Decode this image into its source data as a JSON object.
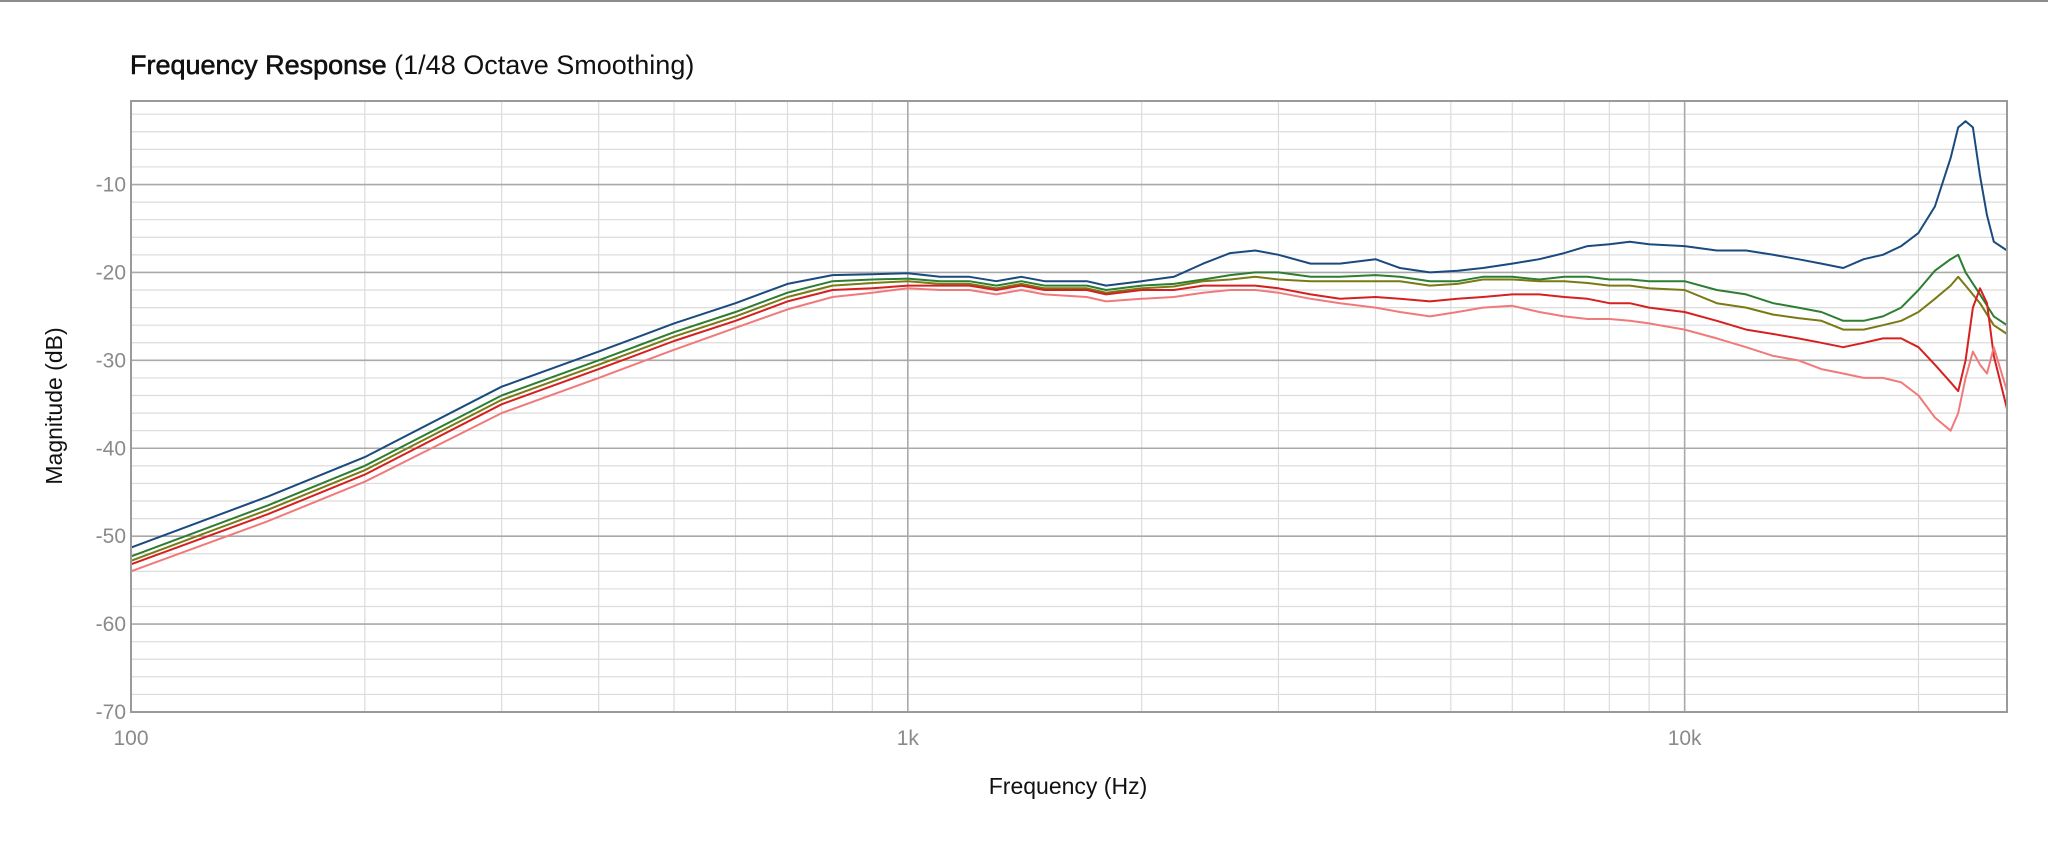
{
  "chart_data": {
    "type": "line",
    "title": "Frequency Response",
    "subtitle": "(1/48 Octave Smoothing)",
    "xlabel": "Frequency (Hz)",
    "ylabel": "Magnitude (dB)",
    "x_scale": "log",
    "xlim": [
      100,
      26000
    ],
    "ylim": [
      -70,
      -0.5
    ],
    "x_ticks": [
      {
        "value": 100,
        "label": "100"
      },
      {
        "value": 1000,
        "label": "1k"
      },
      {
        "value": 10000,
        "label": "10k"
      }
    ],
    "y_ticks": [
      {
        "value": -10,
        "label": "-10"
      },
      {
        "value": -20,
        "label": "-20"
      },
      {
        "value": -30,
        "label": "-30"
      },
      {
        "value": -40,
        "label": "-40"
      },
      {
        "value": -50,
        "label": "-50"
      },
      {
        "value": -60,
        "label": "-60"
      },
      {
        "value": -70,
        "label": "-70"
      }
    ],
    "grid": true,
    "legend": "none",
    "colors": {
      "grid_major": "#a9a9a9",
      "grid_minor": "#dcdcdc",
      "frame": "#9a9a9a"
    },
    "series": [
      {
        "color": "#1a4a7e",
        "points": [
          [
            100,
            -51.3
          ],
          [
            150,
            -45.5
          ],
          [
            200,
            -41.0
          ],
          [
            300,
            -33.0
          ],
          [
            400,
            -29.0
          ],
          [
            500,
            -25.8
          ],
          [
            600,
            -23.5
          ],
          [
            700,
            -21.3
          ],
          [
            800,
            -20.3
          ],
          [
            900,
            -20.2
          ],
          [
            1000,
            -20.1
          ],
          [
            1100,
            -20.5
          ],
          [
            1200,
            -20.5
          ],
          [
            1300,
            -21.0
          ],
          [
            1400,
            -20.5
          ],
          [
            1500,
            -21.0
          ],
          [
            1700,
            -21.0
          ],
          [
            1800,
            -21.5
          ],
          [
            2000,
            -21.0
          ],
          [
            2200,
            -20.5
          ],
          [
            2400,
            -19.0
          ],
          [
            2600,
            -17.8
          ],
          [
            2800,
            -17.5
          ],
          [
            3000,
            -18.0
          ],
          [
            3300,
            -19.0
          ],
          [
            3600,
            -19.0
          ],
          [
            4000,
            -18.5
          ],
          [
            4300,
            -19.5
          ],
          [
            4700,
            -20.0
          ],
          [
            5100,
            -19.8
          ],
          [
            5500,
            -19.5
          ],
          [
            6000,
            -19.0
          ],
          [
            6500,
            -18.5
          ],
          [
            7000,
            -17.8
          ],
          [
            7500,
            -17.0
          ],
          [
            8000,
            -16.8
          ],
          [
            8500,
            -16.5
          ],
          [
            9000,
            -16.8
          ],
          [
            10000,
            -17.0
          ],
          [
            11000,
            -17.5
          ],
          [
            12000,
            -17.5
          ],
          [
            13000,
            -18.0
          ],
          [
            14000,
            -18.5
          ],
          [
            15000,
            -19.0
          ],
          [
            16000,
            -19.5
          ],
          [
            17000,
            -18.5
          ],
          [
            18000,
            -18.0
          ],
          [
            19000,
            -17.0
          ],
          [
            20000,
            -15.5
          ],
          [
            21000,
            -12.5
          ],
          [
            22000,
            -7.0
          ],
          [
            22500,
            -3.5
          ],
          [
            23000,
            -2.8
          ],
          [
            23500,
            -3.5
          ],
          [
            24000,
            -9.0
          ],
          [
            24500,
            -13.5
          ],
          [
            25000,
            -16.5
          ],
          [
            26000,
            -17.5
          ]
        ]
      },
      {
        "color": "#2e7d32",
        "points": [
          [
            100,
            -52.3
          ],
          [
            150,
            -46.5
          ],
          [
            200,
            -42.0
          ],
          [
            300,
            -34.0
          ],
          [
            400,
            -30.0
          ],
          [
            500,
            -26.8
          ],
          [
            600,
            -24.5
          ],
          [
            700,
            -22.3
          ],
          [
            800,
            -21.0
          ],
          [
            900,
            -20.8
          ],
          [
            1000,
            -20.7
          ],
          [
            1100,
            -21.0
          ],
          [
            1200,
            -21.0
          ],
          [
            1300,
            -21.5
          ],
          [
            1400,
            -21.0
          ],
          [
            1500,
            -21.5
          ],
          [
            1700,
            -21.5
          ],
          [
            1800,
            -22.0
          ],
          [
            2000,
            -21.5
          ],
          [
            2200,
            -21.3
          ],
          [
            2400,
            -20.8
          ],
          [
            2600,
            -20.3
          ],
          [
            2800,
            -20.0
          ],
          [
            3000,
            -20.0
          ],
          [
            3300,
            -20.5
          ],
          [
            3600,
            -20.5
          ],
          [
            4000,
            -20.3
          ],
          [
            4300,
            -20.5
          ],
          [
            4700,
            -21.0
          ],
          [
            5100,
            -21.0
          ],
          [
            5500,
            -20.5
          ],
          [
            6000,
            -20.5
          ],
          [
            6500,
            -20.8
          ],
          [
            7000,
            -20.5
          ],
          [
            7500,
            -20.5
          ],
          [
            8000,
            -20.8
          ],
          [
            8500,
            -20.8
          ],
          [
            9000,
            -21.0
          ],
          [
            10000,
            -21.0
          ],
          [
            11000,
            -22.0
          ],
          [
            12000,
            -22.5
          ],
          [
            13000,
            -23.5
          ],
          [
            14000,
            -24.0
          ],
          [
            15000,
            -24.5
          ],
          [
            16000,
            -25.5
          ],
          [
            17000,
            -25.5
          ],
          [
            18000,
            -25.0
          ],
          [
            19000,
            -24.0
          ],
          [
            20000,
            -22.0
          ],
          [
            21000,
            -19.8
          ],
          [
            22000,
            -18.5
          ],
          [
            22500,
            -18.0
          ],
          [
            23000,
            -20.0
          ],
          [
            24000,
            -22.5
          ],
          [
            25000,
            -25.0
          ],
          [
            26000,
            -26.0
          ]
        ]
      },
      {
        "color": "#7a7a14",
        "points": [
          [
            100,
            -52.8
          ],
          [
            150,
            -47.0
          ],
          [
            200,
            -42.5
          ],
          [
            300,
            -34.5
          ],
          [
            400,
            -30.5
          ],
          [
            500,
            -27.3
          ],
          [
            600,
            -25.0
          ],
          [
            700,
            -22.8
          ],
          [
            800,
            -21.5
          ],
          [
            900,
            -21.2
          ],
          [
            1000,
            -21.0
          ],
          [
            1100,
            -21.3
          ],
          [
            1200,
            -21.3
          ],
          [
            1300,
            -21.8
          ],
          [
            1400,
            -21.3
          ],
          [
            1500,
            -21.8
          ],
          [
            1700,
            -21.8
          ],
          [
            1800,
            -22.3
          ],
          [
            2000,
            -21.8
          ],
          [
            2200,
            -21.6
          ],
          [
            2400,
            -21.0
          ],
          [
            2600,
            -20.8
          ],
          [
            2800,
            -20.5
          ],
          [
            3000,
            -20.8
          ],
          [
            3300,
            -21.0
          ],
          [
            3600,
            -21.0
          ],
          [
            4000,
            -21.0
          ],
          [
            4300,
            -21.0
          ],
          [
            4700,
            -21.5
          ],
          [
            5100,
            -21.3
          ],
          [
            5500,
            -20.8
          ],
          [
            6000,
            -20.8
          ],
          [
            6500,
            -21.0
          ],
          [
            7000,
            -21.0
          ],
          [
            7500,
            -21.2
          ],
          [
            8000,
            -21.5
          ],
          [
            8500,
            -21.5
          ],
          [
            9000,
            -21.8
          ],
          [
            10000,
            -22.0
          ],
          [
            11000,
            -23.5
          ],
          [
            12000,
            -24.0
          ],
          [
            13000,
            -24.8
          ],
          [
            14000,
            -25.2
          ],
          [
            15000,
            -25.5
          ],
          [
            16000,
            -26.5
          ],
          [
            17000,
            -26.5
          ],
          [
            18000,
            -26.0
          ],
          [
            19000,
            -25.5
          ],
          [
            20000,
            -24.5
          ],
          [
            21000,
            -23.0
          ],
          [
            22000,
            -21.5
          ],
          [
            22500,
            -20.5
          ],
          [
            23000,
            -21.5
          ],
          [
            24000,
            -23.5
          ],
          [
            25000,
            -26.0
          ],
          [
            26000,
            -27.0
          ]
        ]
      },
      {
        "color": "#d62020",
        "points": [
          [
            100,
            -53.2
          ],
          [
            150,
            -47.5
          ],
          [
            200,
            -43.0
          ],
          [
            300,
            -35.0
          ],
          [
            400,
            -31.0
          ],
          [
            500,
            -27.8
          ],
          [
            600,
            -25.5
          ],
          [
            700,
            -23.3
          ],
          [
            800,
            -22.0
          ],
          [
            900,
            -21.8
          ],
          [
            1000,
            -21.5
          ],
          [
            1100,
            -21.5
          ],
          [
            1200,
            -21.5
          ],
          [
            1300,
            -22.0
          ],
          [
            1400,
            -21.5
          ],
          [
            1500,
            -22.0
          ],
          [
            1700,
            -22.0
          ],
          [
            1800,
            -22.5
          ],
          [
            2000,
            -22.0
          ],
          [
            2200,
            -22.0
          ],
          [
            2400,
            -21.5
          ],
          [
            2600,
            -21.5
          ],
          [
            2800,
            -21.5
          ],
          [
            3000,
            -21.8
          ],
          [
            3300,
            -22.5
          ],
          [
            3600,
            -23.0
          ],
          [
            4000,
            -22.8
          ],
          [
            4300,
            -23.0
          ],
          [
            4700,
            -23.3
          ],
          [
            5100,
            -23.0
          ],
          [
            5500,
            -22.8
          ],
          [
            6000,
            -22.5
          ],
          [
            6500,
            -22.5
          ],
          [
            7000,
            -22.8
          ],
          [
            7500,
            -23.0
          ],
          [
            8000,
            -23.5
          ],
          [
            8500,
            -23.5
          ],
          [
            9000,
            -24.0
          ],
          [
            10000,
            -24.5
          ],
          [
            11000,
            -25.5
          ],
          [
            12000,
            -26.5
          ],
          [
            13000,
            -27.0
          ],
          [
            14000,
            -27.5
          ],
          [
            15000,
            -28.0
          ],
          [
            16000,
            -28.5
          ],
          [
            17000,
            -28.0
          ],
          [
            18000,
            -27.5
          ],
          [
            19000,
            -27.5
          ],
          [
            20000,
            -28.5
          ],
          [
            21000,
            -30.5
          ],
          [
            22000,
            -32.5
          ],
          [
            22500,
            -33.5
          ],
          [
            23000,
            -30.0
          ],
          [
            23500,
            -24.0
          ],
          [
            24000,
            -21.8
          ],
          [
            24500,
            -23.5
          ],
          [
            25000,
            -29.5
          ],
          [
            26000,
            -35.5
          ]
        ]
      },
      {
        "color": "#f07a7a",
        "points": [
          [
            100,
            -54.0
          ],
          [
            150,
            -48.3
          ],
          [
            200,
            -43.8
          ],
          [
            300,
            -36.0
          ],
          [
            400,
            -32.0
          ],
          [
            500,
            -28.8
          ],
          [
            600,
            -26.3
          ],
          [
            700,
            -24.2
          ],
          [
            800,
            -22.8
          ],
          [
            900,
            -22.3
          ],
          [
            1000,
            -21.8
          ],
          [
            1100,
            -22.0
          ],
          [
            1200,
            -22.0
          ],
          [
            1300,
            -22.5
          ],
          [
            1400,
            -22.0
          ],
          [
            1500,
            -22.5
          ],
          [
            1700,
            -22.8
          ],
          [
            1800,
            -23.3
          ],
          [
            2000,
            -23.0
          ],
          [
            2200,
            -22.8
          ],
          [
            2400,
            -22.3
          ],
          [
            2600,
            -22.0
          ],
          [
            2800,
            -22.0
          ],
          [
            3000,
            -22.3
          ],
          [
            3300,
            -23.0
          ],
          [
            3600,
            -23.5
          ],
          [
            4000,
            -24.0
          ],
          [
            4300,
            -24.5
          ],
          [
            4700,
            -25.0
          ],
          [
            5100,
            -24.5
          ],
          [
            5500,
            -24.0
          ],
          [
            6000,
            -23.8
          ],
          [
            6500,
            -24.5
          ],
          [
            7000,
            -25.0
          ],
          [
            7500,
            -25.3
          ],
          [
            8000,
            -25.3
          ],
          [
            8500,
            -25.5
          ],
          [
            9000,
            -25.8
          ],
          [
            10000,
            -26.5
          ],
          [
            11000,
            -27.5
          ],
          [
            12000,
            -28.5
          ],
          [
            13000,
            -29.5
          ],
          [
            14000,
            -30.0
          ],
          [
            15000,
            -31.0
          ],
          [
            16000,
            -31.5
          ],
          [
            17000,
            -32.0
          ],
          [
            18000,
            -32.0
          ],
          [
            19000,
            -32.5
          ],
          [
            20000,
            -34.0
          ],
          [
            21000,
            -36.5
          ],
          [
            22000,
            -38.0
          ],
          [
            22500,
            -36.0
          ],
          [
            23000,
            -32.0
          ],
          [
            23500,
            -29.0
          ],
          [
            24000,
            -30.5
          ],
          [
            24500,
            -31.5
          ],
          [
            25000,
            -28.5
          ],
          [
            26000,
            -33.5
          ]
        ]
      }
    ]
  }
}
